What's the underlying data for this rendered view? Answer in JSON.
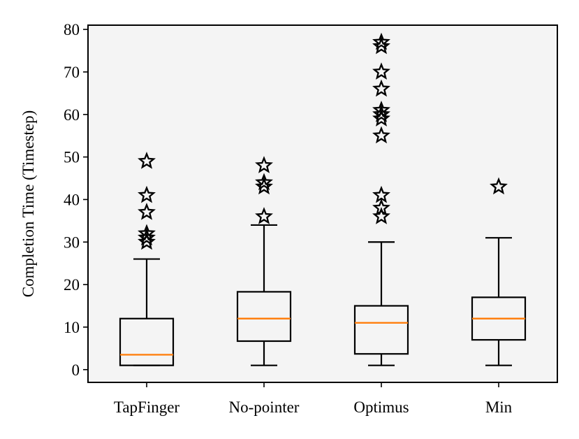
{
  "chart_data": {
    "type": "boxplot",
    "categories": [
      "TapFinger",
      "No-pointer",
      "Optimus",
      "Min"
    ],
    "ylabel": "Completion Time (Timestep)",
    "xlabel": "",
    "ylim": [
      -3,
      81
    ],
    "yticks": [
      0,
      10,
      20,
      30,
      40,
      50,
      60,
      70,
      80
    ],
    "grid": false,
    "boxes": [
      {
        "label": "TapFinger",
        "whisker_low": 1,
        "q1": 1,
        "median": 3.5,
        "q3": 12,
        "whisker_high": 26,
        "outliers": [
          30,
          31,
          32,
          37,
          41,
          49
        ]
      },
      {
        "label": "No-pointer",
        "whisker_low": 1,
        "q1": 6.7,
        "median": 12,
        "q3": 18.3,
        "whisker_high": 34,
        "outliers": [
          36,
          43,
          44,
          48
        ]
      },
      {
        "label": "Optimus",
        "whisker_low": 1,
        "q1": 3.7,
        "median": 11,
        "q3": 15,
        "whisker_high": 30,
        "outliers": [
          36,
          38,
          41,
          55,
          59,
          60,
          61,
          66,
          70,
          76,
          77
        ]
      },
      {
        "label": "Min",
        "whisker_low": 1,
        "q1": 7,
        "median": 12,
        "q3": 17,
        "whisker_high": 31,
        "outliers": [
          43
        ]
      }
    ],
    "colors": {
      "plot_background": "#f4f4f4",
      "box": "#000000",
      "median": "#ff7f0e",
      "outlier_marker": "star"
    }
  }
}
